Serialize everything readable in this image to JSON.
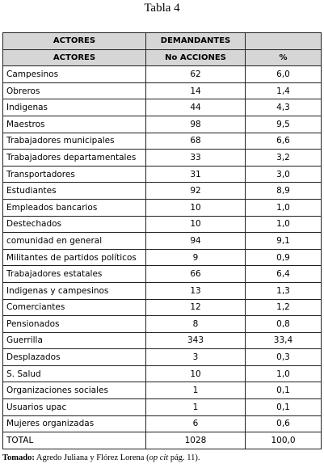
{
  "title": "Tabla 4",
  "table": {
    "header1": [
      "ACTORES",
      "DEMANDANTES"
    ],
    "header2": [
      "ACTORES",
      "No ACCIONES",
      "%"
    ],
    "rows": [
      [
        "Campesinos",
        62,
        "6,0"
      ],
      [
        "Obreros",
        14,
        "1,4"
      ],
      [
        "Indigenas",
        44,
        "4,3"
      ],
      [
        "Maestros",
        98,
        "9,5"
      ],
      [
        "Trabajadores municipales",
        68,
        "6,6"
      ],
      [
        "Trabajadores departamentales",
        33,
        "3,2"
      ],
      [
        "Transportadores",
        31,
        "3,0"
      ],
      [
        "Estudiantes",
        92,
        "8,9"
      ],
      [
        "Empleados bancarios",
        10,
        "1,0"
      ],
      [
        "Destechados",
        10,
        "1,0"
      ],
      [
        "comunidad en general",
        94,
        "9,1"
      ],
      [
        "Militantes de partidos políticos",
        9,
        "0,9"
      ],
      [
        "Trabajadores estatales",
        66,
        "6,4"
      ],
      [
        "Indigenas y campesinos",
        13,
        "1,3"
      ],
      [
        "Comerciantes",
        12,
        "1,2"
      ],
      [
        "Pensionados",
        8,
        "0,8"
      ],
      [
        "Guerrilla",
        343,
        "33,4"
      ],
      [
        "Desplazados",
        3,
        "0,3"
      ],
      [
        "S. Salud",
        10,
        "1,0"
      ],
      [
        "Organizaciones sociales",
        1,
        "0,1"
      ],
      [
        "Usuarios upac",
        1,
        "0,1"
      ],
      [
        "Mujeres organizadas",
        6,
        "0,6"
      ],
      [
        "TOTAL",
        1028,
        "100,0"
      ]
    ]
  },
  "source": {
    "label": "Tomado:",
    "text": "Agredo Juliana y Flórez Lorena (",
    "italic": "op cit",
    "end": " pág. 11)."
  }
}
